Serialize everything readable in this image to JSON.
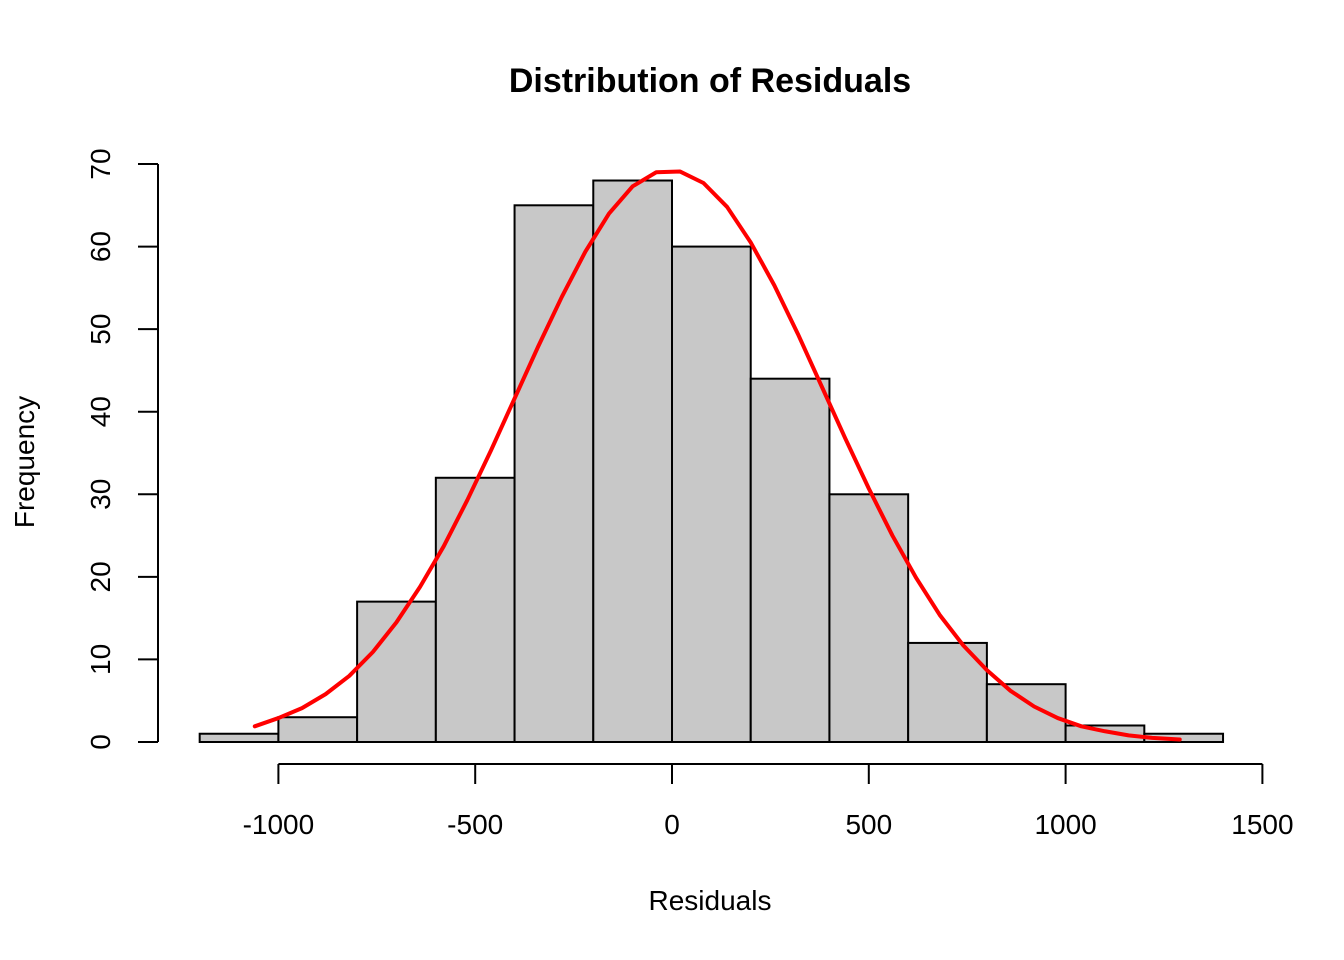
{
  "chart_data": {
    "type": "bar",
    "title": "Distribution of Residuals",
    "xlabel": "Residuals",
    "ylabel": "Frequency",
    "bins": [
      {
        "start": -1200,
        "end": -1000,
        "count": 1
      },
      {
        "start": -1000,
        "end": -800,
        "count": 3
      },
      {
        "start": -800,
        "end": -600,
        "count": 17
      },
      {
        "start": -600,
        "end": -400,
        "count": 32
      },
      {
        "start": -400,
        "end": -200,
        "count": 65
      },
      {
        "start": -200,
        "end": 0,
        "count": 68
      },
      {
        "start": 0,
        "end": 200,
        "count": 60
      },
      {
        "start": 200,
        "end": 400,
        "count": 44
      },
      {
        "start": 400,
        "end": 600,
        "count": 30
      },
      {
        "start": 600,
        "end": 800,
        "count": 12
      },
      {
        "start": 800,
        "end": 1000,
        "count": 7
      },
      {
        "start": 1000,
        "end": 1200,
        "count": 2
      },
      {
        "start": 1200,
        "end": 1400,
        "count": 1
      }
    ],
    "xticks": [
      -1000,
      -500,
      0,
      500,
      1000,
      1500
    ],
    "xtick_labels": [
      "-1000",
      "-500",
      "0",
      "500",
      "1000",
      "1500"
    ],
    "yticks": [
      0,
      10,
      20,
      30,
      40,
      50,
      60,
      70
    ],
    "ytick_labels": [
      "0",
      "10",
      "20",
      "30",
      "40",
      "50",
      "60",
      "70"
    ],
    "xlim": [
      -1200,
      1500
    ],
    "ylim": [
      0,
      70
    ],
    "grid": false,
    "bar_color": "#c8c8c8",
    "density_curve": {
      "color": "#ff0000",
      "x": [
        -1060,
        -1000,
        -940,
        -880,
        -820,
        -760,
        -700,
        -640,
        -580,
        -520,
        -460,
        -400,
        -340,
        -280,
        -220,
        -160,
        -100,
        -40,
        20,
        80,
        140,
        200,
        260,
        320,
        380,
        440,
        500,
        560,
        620,
        680,
        740,
        800,
        860,
        920,
        980,
        1040,
        1100,
        1160,
        1220,
        1290
      ],
      "y": [
        1.9,
        2.9,
        4.1,
        5.8,
        8.0,
        10.9,
        14.5,
        18.8,
        23.7,
        29.3,
        35.3,
        41.6,
        47.9,
        53.9,
        59.4,
        64.0,
        67.3,
        69.0,
        69.1,
        67.7,
        64.8,
        60.5,
        55.3,
        49.4,
        43.1,
        36.8,
        30.7,
        25.0,
        19.9,
        15.4,
        11.7,
        8.7,
        6.2,
        4.3,
        2.9,
        1.9,
        1.3,
        0.8,
        0.5,
        0.3
      ]
    }
  }
}
